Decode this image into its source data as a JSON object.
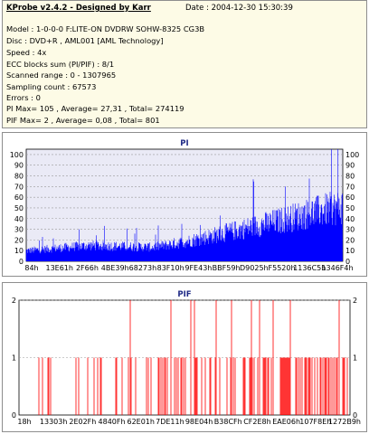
{
  "header": {
    "title": "KProbe v2.4.2 - Designed by Karr",
    "date": "Date : 2004-12-30 15:30:39"
  },
  "info_lines": [
    "Model : 1-0-0-0 F:LITE-ON DVDRW SOHW-8325  CG3B",
    "Disc : DVD+R , AML001 [AML Technology]",
    "Speed : 4x",
    "ECC blocks sum (PI/PIF) : 8/1",
    "Scanned range : 0 - 1307965",
    "Sampling count : 67573",
    "Errors : 0",
    "PI Max= 105 , Average= 27,31 , Total= 274119",
    "PIF Max= 2 , Average= 0,08 , Total= 801"
  ],
  "colors": {
    "info_bg": "#fdfbe6",
    "plot_bg": "#eaeaf6",
    "pi_bar": "#0000ff",
    "pif_bar": "#ff0000",
    "grid": "#9a9a9a",
    "title": "#1f2a86"
  },
  "chart_data": [
    {
      "type": "bar",
      "title": "PI",
      "ylim": [
        0,
        105
      ],
      "y_ticks": [
        0,
        10,
        20,
        30,
        40,
        50,
        60,
        70,
        80,
        90,
        100
      ],
      "x_tick_labels": [
        "84h",
        "13E61h",
        "2F66h",
        "4BE39h",
        "68273h",
        "83F10h",
        "9FE43h",
        "BBF59h",
        "D9025h",
        "F5520h",
        "1136C5h",
        "1346F4h"
      ],
      "grid": true,
      "max": 105,
      "average": 27.31,
      "approx_profile": [
        {
          "x": 0,
          "y": 12
        },
        {
          "x": 0.1,
          "y": 15
        },
        {
          "x": 0.2,
          "y": 18
        },
        {
          "x": 0.3,
          "y": 17
        },
        {
          "x": 0.4,
          "y": 16
        },
        {
          "x": 0.5,
          "y": 22
        },
        {
          "x": 0.6,
          "y": 30
        },
        {
          "x": 0.7,
          "y": 38
        },
        {
          "x": 0.8,
          "y": 46
        },
        {
          "x": 0.9,
          "y": 55
        },
        {
          "x": 1.0,
          "y": 62
        }
      ]
    },
    {
      "type": "bar",
      "title": "PIF",
      "ylim": [
        0,
        2
      ],
      "y_ticks": [
        0,
        1,
        2
      ],
      "x_tick_labels": [
        "18h",
        "13303h",
        "2E02Fh",
        "4840Fh",
        "62E01h",
        "7DE11h",
        "98E04h",
        "B38CFh",
        "CF2E8h",
        "EAE06h",
        "107F8Eh",
        "1272B9h"
      ],
      "grid": true,
      "max": 2,
      "average": 0.08
    }
  ]
}
